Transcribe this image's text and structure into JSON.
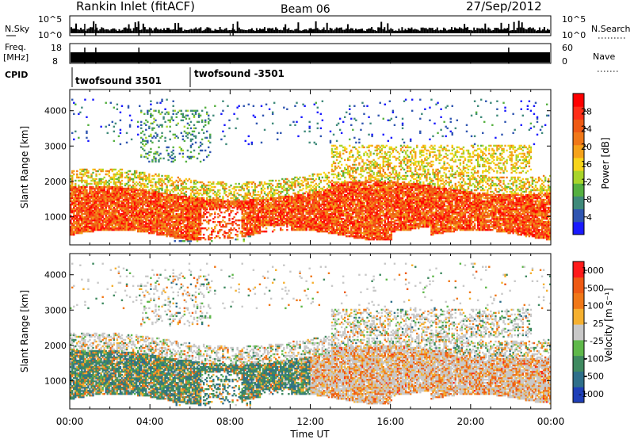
{
  "header": {
    "radar": "Rankin Inlet (fitACF)",
    "beam": "Beam 06",
    "date": "27/Sep/2012"
  },
  "strip_nsky": {
    "left_label": "N.Sky",
    "left_ticks": [
      "10^5",
      "10^0"
    ],
    "right_ticks": [
      "10^5",
      "10^0"
    ],
    "right_label": "N.Search"
  },
  "strip_freq": {
    "left_label_1": "Freq.",
    "left_label_2": "[MHz]",
    "left_ticks": [
      "18",
      "8"
    ],
    "right_ticks": [
      "60",
      "0"
    ],
    "right_label": "Nave"
  },
  "cpid": {
    "label": "CPID",
    "modes": [
      {
        "name": "twofsound 3501",
        "start_hour": 0
      },
      {
        "name": "twofsound -3501",
        "start_hour": 6
      }
    ]
  },
  "chart_data": [
    {
      "type": "heatmap",
      "ylabel": "Slant Range [km]",
      "x_ticks": [
        "00:00",
        "04:00",
        "08:00",
        "12:00",
        "16:00",
        "20:00",
        "00:00"
      ],
      "xlim_hours": [
        0,
        24
      ],
      "y_ticks": [
        1000,
        2000,
        3000,
        4000
      ],
      "ylim": [
        200,
        4600
      ],
      "colorbar": {
        "label": "Power [dB]",
        "ticks": [
          "4",
          "8",
          "12",
          "16",
          "20",
          "24",
          "28"
        ],
        "colors": [
          "#1a1aff",
          "#2f55b0",
          "#3f8a7a",
          "#55b040",
          "#a8d42a",
          "#f7d41a",
          "#f5a21a",
          "#f07818",
          "#ee5a14",
          "#ff2e18",
          "#ff0000"
        ]
      }
    },
    {
      "type": "heatmap",
      "ylabel": "Slant Range [km]",
      "x_ticks": [
        "00:00",
        "04:00",
        "08:00",
        "12:00",
        "16:00",
        "20:00",
        "00:00"
      ],
      "xlim_hours": [
        0,
        24
      ],
      "y_ticks": [
        1000,
        2000,
        3000,
        4000
      ],
      "ylim": [
        200,
        4600
      ],
      "xlabel": "Time UT",
      "colorbar": {
        "label": "Velocity [m s⁻¹]",
        "ticks": [
          "1000",
          "500",
          "100",
          "25",
          "-25",
          "-100",
          "-500",
          "-1000"
        ],
        "colors": [
          "#1f3fb8",
          "#2f6f8a",
          "#3f8a60",
          "#5fb84a",
          "#c8c8c8",
          "#f5b030",
          "#f07818",
          "#ee5a14",
          "#ff1a1a"
        ]
      }
    }
  ]
}
